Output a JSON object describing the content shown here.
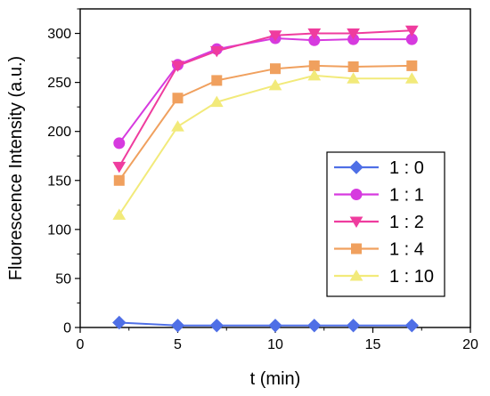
{
  "chart_data": {
    "type": "line",
    "xlabel": "t (min)",
    "ylabel": "Fluorescence Intensity (a.u.)",
    "xlim": [
      0,
      20
    ],
    "ylim": [
      0,
      325
    ],
    "xticks": [
      "0",
      "5",
      "10",
      "15",
      "20"
    ],
    "yticks": [
      "0",
      "50",
      "100",
      "150",
      "200",
      "250",
      "300"
    ],
    "grid": false,
    "legend_position": "bottom-right",
    "x": [
      2,
      5,
      7,
      10,
      12,
      14,
      17
    ],
    "series": [
      {
        "name": "1 : 0",
        "marker": "diamond",
        "color": "#4f6fe6",
        "values": [
          5,
          2,
          2,
          2,
          2,
          2,
          2
        ]
      },
      {
        "name": "1 : 1",
        "marker": "circle",
        "color": "#d63adf",
        "values": [
          188,
          268,
          284,
          295,
          293,
          294,
          294
        ]
      },
      {
        "name": "1 : 2",
        "marker": "triangle-down",
        "color": "#ef3c9e",
        "values": [
          164,
          267,
          282,
          298,
          300,
          300,
          303
        ]
      },
      {
        "name": "1 : 4",
        "marker": "square",
        "color": "#f0a05e",
        "values": [
          150,
          234,
          252,
          264,
          267,
          266,
          267
        ]
      },
      {
        "name": "1 : 10",
        "marker": "triangle-up",
        "color": "#f2ea7a",
        "values": [
          115,
          205,
          230,
          247,
          257,
          254,
          254
        ]
      }
    ]
  }
}
